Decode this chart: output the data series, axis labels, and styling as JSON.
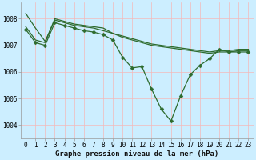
{
  "bg_color": "#cceeff",
  "grid_color": "#f5b8b8",
  "line_color": "#2d6b2d",
  "line_width": 0.9,
  "marker": "D",
  "marker_size": 2.5,
  "xlabel": "Graphe pression niveau de la mer (hPa)",
  "xlabel_fontsize": 6.5,
  "tick_fontsize": 5.5,
  "ylim": [
    1003.5,
    1008.6
  ],
  "yticks": [
    1004,
    1005,
    1006,
    1007,
    1008
  ],
  "xticks": [
    0,
    1,
    2,
    3,
    4,
    5,
    6,
    7,
    8,
    9,
    10,
    11,
    12,
    13,
    14,
    15,
    16,
    17,
    18,
    19,
    20,
    21,
    22,
    23
  ],
  "series": [
    {
      "y": [
        1008.2,
        1007.65,
        1007.15,
        1007.95,
        1007.85,
        1007.75,
        1007.7,
        1007.65,
        1007.55,
        1007.45,
        1007.35,
        1007.25,
        1007.15,
        1007.05,
        1007.0,
        1006.95,
        1006.9,
        1006.85,
        1006.8,
        1006.75,
        1006.8,
        1006.8,
        1006.85,
        1006.85
      ],
      "markers": false,
      "marker_every": null
    },
    {
      "y": [
        1007.7,
        1007.2,
        1007.1,
        1008.0,
        1007.9,
        1007.8,
        1007.75,
        1007.7,
        1007.65,
        1007.45,
        1007.3,
        1007.2,
        1007.1,
        1007.0,
        1006.95,
        1006.9,
        1006.85,
        1006.8,
        1006.75,
        1006.7,
        1006.75,
        1006.75,
        1006.8,
        1006.8
      ],
      "markers": false,
      "marker_every": null
    },
    {
      "y": [
        1007.6,
        1007.1,
        1007.0,
        1007.85,
        1007.75,
        1007.65,
        1007.55,
        1007.5,
        1007.4,
        1007.2,
        1006.55,
        1006.15,
        1006.2,
        1005.35,
        1004.6,
        1004.15,
        1005.1,
        1005.9,
        1006.25,
        1006.5,
        1006.85,
        1006.75,
        1006.75,
        1006.75
      ],
      "markers": true,
      "marker_every": 1
    }
  ]
}
